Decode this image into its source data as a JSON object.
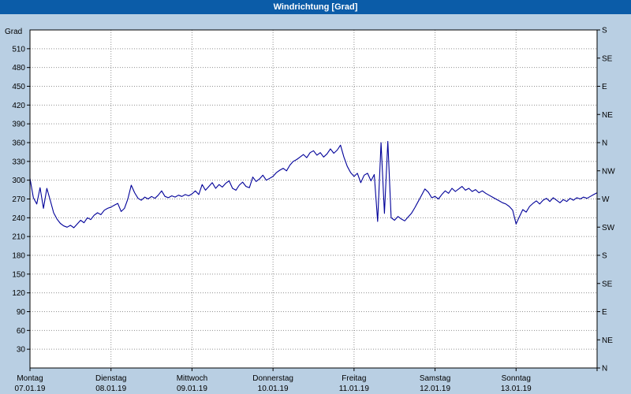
{
  "title": "Windrichtung [Grad]",
  "colors": {
    "background": "#b9cfe3",
    "titlebar_bg": "#0b5ca8",
    "titlebar_text": "#ffffff",
    "plot_bg": "#ffffff",
    "grid": "#909090",
    "axis_text": "#000000",
    "border": "#000000",
    "line": "#000099"
  },
  "chart_data": {
    "type": "line",
    "title": "Windrichtung [Grad]",
    "ylabel": "Grad",
    "grid": true,
    "legend": "none",
    "y_axis": {
      "min": 0,
      "max": 540,
      "tick_step": 30,
      "tick_labels": [
        30,
        60,
        90,
        120,
        150,
        180,
        210,
        240,
        270,
        300,
        330,
        360,
        390,
        420,
        450,
        480,
        510
      ]
    },
    "y_axis_right": [
      {
        "value": 540,
        "label": "S"
      },
      {
        "value": 495,
        "label": "SE"
      },
      {
        "value": 450,
        "label": "E"
      },
      {
        "value": 405,
        "label": "NE"
      },
      {
        "value": 360,
        "label": "N"
      },
      {
        "value": 315,
        "label": "NW"
      },
      {
        "value": 270,
        "label": "W"
      },
      {
        "value": 225,
        "label": "SW"
      },
      {
        "value": 180,
        "label": "S"
      },
      {
        "value": 135,
        "label": "SE"
      },
      {
        "value": 90,
        "label": "E"
      },
      {
        "value": 45,
        "label": "NE"
      },
      {
        "value": 0,
        "label": "N"
      }
    ],
    "x_axis": {
      "unit": "hours",
      "min": 0,
      "max": 168,
      "days": [
        {
          "hour": 0,
          "name": "Montag",
          "date": "07.01.19"
        },
        {
          "hour": 24,
          "name": "Dienstag",
          "date": "08.01.19"
        },
        {
          "hour": 48,
          "name": "Mittwoch",
          "date": "09.01.19"
        },
        {
          "hour": 72,
          "name": "Donnerstag",
          "date": "10.01.19"
        },
        {
          "hour": 96,
          "name": "Freitag",
          "date": "11.01.19"
        },
        {
          "hour": 120,
          "name": "Samstag",
          "date": "12.01.19"
        },
        {
          "hour": 144,
          "name": "Sonntag",
          "date": "13.01.19"
        }
      ]
    },
    "series": [
      {
        "name": "Windrichtung",
        "x_hours_start": 0,
        "x_hours_step": 1,
        "y": [
          303,
          272,
          262,
          288,
          255,
          287,
          268,
          248,
          238,
          231,
          227,
          225,
          228,
          224,
          230,
          236,
          232,
          240,
          237,
          244,
          248,
          245,
          252,
          255,
          257,
          260,
          263,
          250,
          255,
          270,
          292,
          280,
          271,
          268,
          273,
          270,
          274,
          271,
          276,
          283,
          274,
          272,
          275,
          273,
          276,
          274,
          277,
          275,
          278,
          283,
          277,
          293,
          284,
          290,
          296,
          287,
          293,
          289,
          295,
          299,
          287,
          284,
          292,
          297,
          290,
          288,
          305,
          298,
          302,
          308,
          300,
          303,
          306,
          312,
          316,
          319,
          315,
          324,
          330,
          333,
          337,
          341,
          336,
          344,
          347,
          340,
          344,
          337,
          342,
          350,
          343,
          348,
          356,
          337,
          322,
          312,
          306,
          311,
          296,
          308,
          311,
          299,
          309,
          234,
          360,
          247,
          362,
          240,
          236,
          242,
          238,
          235,
          241,
          247,
          256,
          266,
          276,
          286,
          281,
          272,
          274,
          270,
          277,
          283,
          279,
          287,
          282,
          286,
          290,
          284,
          287,
          282,
          285,
          280,
          283,
          279,
          276,
          273,
          270,
          267,
          264,
          262,
          258,
          252,
          230,
          242,
          253,
          249,
          258,
          263,
          267,
          262,
          268,
          271,
          266,
          272,
          268,
          264,
          269,
          266,
          271,
          268,
          272,
          270,
          273,
          271,
          274,
          277,
          280
        ]
      }
    ]
  }
}
